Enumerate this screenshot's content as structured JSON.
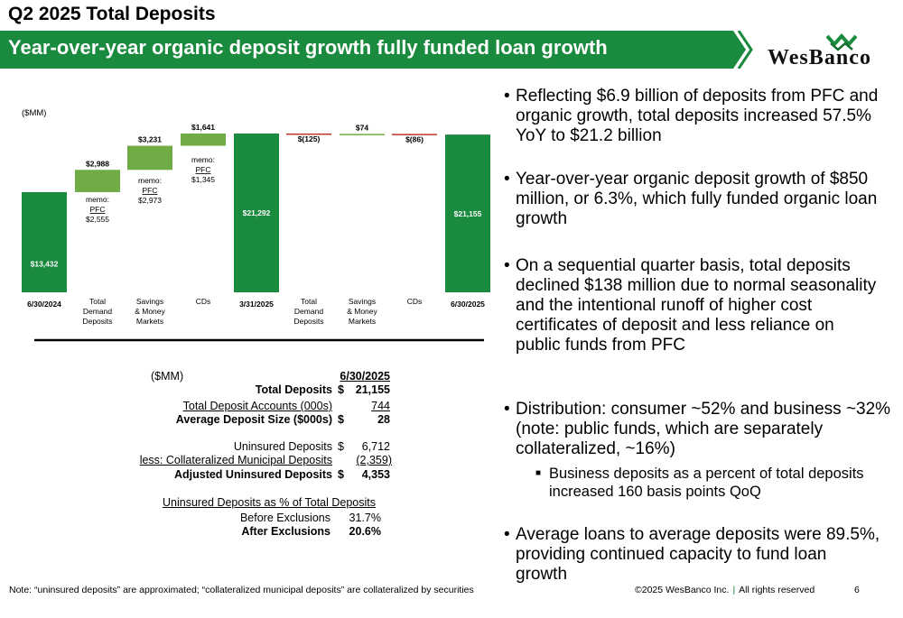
{
  "header": {
    "title": "Q2 2025 Total Deposits",
    "banner": "Year-over-year organic deposit growth fully funded loan growth",
    "logo_text": "WesBanco",
    "colors": {
      "banner": "#1a8a3e",
      "dark_green": "#14702f",
      "light_green": "#6fac46",
      "negative": "#c0392b"
    }
  },
  "chart_data": {
    "type": "bar",
    "subtype": "waterfall",
    "unit_label": "($MM)",
    "categories": [
      "6/30/2024",
      "Total Demand Deposits",
      "Savings & Money Markets",
      "CDs",
      "3/31/2025",
      "Total Demand Deposits",
      "Savings & Money Markets",
      "CDs",
      "6/30/2025"
    ],
    "category_lines": [
      [
        "6/30/2024"
      ],
      [
        "Total",
        "Demand",
        "Deposits"
      ],
      [
        "Savings",
        "& Money",
        "Markets"
      ],
      [
        "CDs"
      ],
      [
        "3/31/2025"
      ],
      [
        "Total",
        "Demand",
        "Deposits"
      ],
      [
        "Savings",
        "& Money",
        "Markets"
      ],
      [
        "CDs"
      ],
      [
        "6/30/2025"
      ]
    ],
    "values": [
      13432,
      2988,
      3231,
      1641,
      21292,
      -125,
      74,
      -86,
      21155
    ],
    "kinds": [
      "total",
      "delta",
      "delta",
      "delta",
      "total",
      "delta",
      "delta",
      "delta",
      "total"
    ],
    "value_labels": [
      "$13,432",
      "$2,988",
      "$3,231",
      "$1,641",
      "$21,292",
      "$(125)",
      "$74",
      "$(86)",
      "$21,155"
    ],
    "memos": [
      {
        "index": 1,
        "lines": [
          "memo:",
          "PFC",
          "$2,555"
        ]
      },
      {
        "index": 2,
        "lines": [
          "memo:",
          "PFC",
          "$2,973"
        ]
      },
      {
        "index": 3,
        "lines": [
          "memo:",
          "PFC",
          "$1,345"
        ]
      }
    ],
    "ylim": [
      0,
      22500
    ]
  },
  "table": {
    "unit_label": "($MM)",
    "date_header": "6/30/2025",
    "rows": [
      {
        "label": "Total Deposits",
        "cur": "$",
        "value": "21,155"
      },
      {
        "label": "Total Deposit Accounts (000s)",
        "cur": "",
        "value": "744"
      },
      {
        "label": "Average Deposit Size ($000s)",
        "cur": "$",
        "value": "28"
      },
      {
        "label": "Uninsured Deposits",
        "cur": "$",
        "value": "6,712"
      },
      {
        "label": "less: Collateralized Municipal Deposits",
        "cur": "",
        "value": "(2,359)"
      },
      {
        "label": "Adjusted Uninsured Deposits",
        "cur": "$",
        "value": "4,353"
      }
    ],
    "pct_header": "Uninsured Deposits as % of Total Deposits",
    "pct_rows": [
      {
        "label": "Before Exclusions",
        "value": "31.7%"
      },
      {
        "label": "After Exclusions",
        "value": "20.6%"
      }
    ]
  },
  "bullets": [
    "Reflecting $6.9 billion of deposits from PFC and organic growth, total deposits increased 57.5% YoY to $21.2 billion",
    "Year-over-year organic deposit growth of $850 million, or 6.3%, which fully funded organic loan growth",
    "On a sequential quarter basis, total deposits declined $138 million due to normal seasonality and the intentional runoff of higher cost certificates of deposit and less reliance on public funds from PFC",
    "Distribution: consumer ~52% and business ~32% (note: public funds, which are separately collateralized, ~16%)",
    "Average loans to average deposits were 89.5%, providing continued capacity to fund loan growth"
  ],
  "sub_bullet": "Business deposits as a percent of total deposits increased 160 basis points QoQ",
  "footer": {
    "note": "Note: “uninsured deposits” are approximated; “collateralized municipal deposits” are collateralized by securities",
    "copyright": "©2025 WesBanco Inc.",
    "rights": "All rights reserved",
    "page": "6"
  }
}
